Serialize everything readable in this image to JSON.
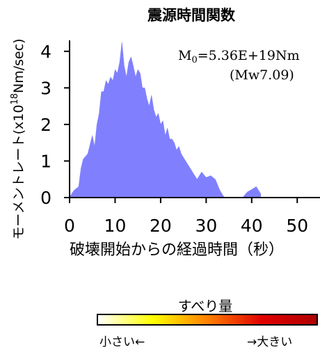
{
  "chart_data": {
    "type": "area",
    "title": "震源時間関数",
    "xlabel": "破壊開始からの経過時間（秒）",
    "ylabel": "モーメントレート(x10^18Nm/sec)",
    "ylabel_parts": {
      "main": "モーメントレート(x10",
      "sup": "18",
      "tail": "Nm/sec)"
    },
    "annotation": {
      "m0_symbol": "M",
      "m0_sub": "0",
      "m0_value": "=5.36E+19Nm",
      "mw": "(Mw7.09)"
    },
    "xlim": [
      0,
      55
    ],
    "ylim": [
      0,
      4.3
    ],
    "xticks": [
      0,
      10,
      20,
      30,
      40,
      50
    ],
    "yticks": [
      0,
      1,
      2,
      3,
      4
    ],
    "fill_color": "#8080ff",
    "series": [
      {
        "x": [
          0,
          1,
          2,
          2.5,
          3,
          4,
          5,
          5.5,
          6,
          6.5,
          7,
          7.5,
          8,
          8.5,
          9,
          9.5,
          10,
          10.5,
          11,
          11.5,
          12,
          12.5,
          13,
          13.5,
          14,
          14.5,
          15,
          15.5,
          16,
          16.5,
          17,
          17.5,
          18,
          18.5,
          19,
          19.5,
          20,
          20.5,
          21,
          21.5,
          22,
          22.5,
          23,
          23.5,
          24,
          24.5,
          25,
          26,
          27,
          28,
          29,
          30,
          31,
          32,
          33,
          34,
          38,
          39,
          40,
          41,
          42
        ],
        "y": [
          0.02,
          0.2,
          0.3,
          0.8,
          1.05,
          1.2,
          1.7,
          1.4,
          2.0,
          2.3,
          2.9,
          2.9,
          3.2,
          3.1,
          3.3,
          3.2,
          3.5,
          3.4,
          3.7,
          4.25,
          3.6,
          3.3,
          3.7,
          3.85,
          3.6,
          3.3,
          3.5,
          3.4,
          3.0,
          3.0,
          2.7,
          2.5,
          2.8,
          2.4,
          2.2,
          2.3,
          2.0,
          2.1,
          1.7,
          1.9,
          1.6,
          1.6,
          1.5,
          1.3,
          1.4,
          1.2,
          1.1,
          0.9,
          0.7,
          0.5,
          0.7,
          0.55,
          0.6,
          0.5,
          0.2,
          0.0,
          0.0,
          0.15,
          0.22,
          0.3,
          0.1
        ]
      }
    ]
  },
  "colorbar": {
    "title": "すべり量",
    "label_small": "小さい←",
    "label_large": "→大きい",
    "colors": [
      "#ffffff",
      "#ffff00",
      "#ff8000",
      "#e00000",
      "#b00000"
    ]
  }
}
